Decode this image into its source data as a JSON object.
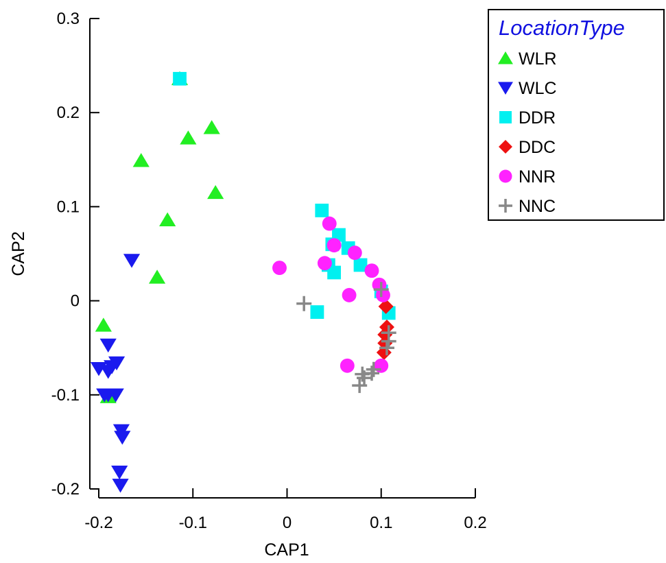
{
  "chart_data": {
    "type": "scatter",
    "xlabel": "CAP1",
    "ylabel": "CAP2",
    "xlim": [
      -0.2,
      0.2
    ],
    "ylim": [
      -0.2,
      0.3
    ],
    "x_ticks": [
      "-0.2",
      "-0.1",
      "0",
      "0.1",
      "0.2"
    ],
    "y_ticks": [
      "-0.2",
      "-0.1",
      "0",
      "0.1",
      "0.2",
      "0.3"
    ],
    "grid": false,
    "legend_title": "LocationType",
    "legend_title_color": "#1010e0",
    "legend_placement": "top-right",
    "series": [
      {
        "name": "WLR",
        "marker": "triangle-up",
        "color": "#22ee22",
        "points": [
          [
            -0.114,
            0.236
          ],
          [
            -0.08,
            0.184
          ],
          [
            -0.105,
            0.173
          ],
          [
            -0.155,
            0.149
          ],
          [
            -0.076,
            0.115
          ],
          [
            -0.127,
            0.086
          ],
          [
            -0.138,
            0.025
          ],
          [
            -0.195,
            -0.026
          ],
          [
            -0.19,
            -0.102
          ]
        ]
      },
      {
        "name": "WLC",
        "marker": "triangle-down",
        "color": "#1a1aee",
        "points": [
          [
            -0.165,
            0.043
          ],
          [
            -0.19,
            -0.047
          ],
          [
            -0.181,
            -0.066
          ],
          [
            -0.186,
            -0.07
          ],
          [
            -0.2,
            -0.072
          ],
          [
            -0.19,
            -0.075
          ],
          [
            -0.19,
            -0.1
          ],
          [
            -0.182,
            -0.1
          ],
          [
            -0.194,
            -0.1
          ],
          [
            -0.176,
            -0.138
          ],
          [
            -0.175,
            -0.145
          ],
          [
            -0.178,
            -0.182
          ],
          [
            -0.177,
            -0.196
          ]
        ]
      },
      {
        "name": "DDR",
        "marker": "square",
        "color": "#00f0f0",
        "points": [
          [
            -0.114,
            0.236
          ],
          [
            0.037,
            0.096
          ],
          [
            0.055,
            0.07
          ],
          [
            0.048,
            0.06
          ],
          [
            0.065,
            0.056
          ],
          [
            0.078,
            0.038
          ],
          [
            0.044,
            0.038
          ],
          [
            0.05,
            0.03
          ],
          [
            0.032,
            -0.012
          ],
          [
            0.1,
            0.01
          ],
          [
            0.108,
            -0.013
          ]
        ]
      },
      {
        "name": "DDC",
        "marker": "diamond",
        "color": "#ee1111",
        "points": [
          [
            0.105,
            -0.006
          ],
          [
            0.106,
            -0.028
          ],
          [
            0.104,
            -0.036
          ],
          [
            0.104,
            -0.045
          ],
          [
            0.103,
            -0.055
          ]
        ]
      },
      {
        "name": "NNR",
        "marker": "circle",
        "color": "#ff22ff",
        "points": [
          [
            -0.008,
            0.035
          ],
          [
            0.045,
            0.082
          ],
          [
            0.05,
            0.059
          ],
          [
            0.072,
            0.051
          ],
          [
            0.04,
            0.04
          ],
          [
            0.09,
            0.032
          ],
          [
            0.098,
            0.017
          ],
          [
            0.066,
            0.006
          ],
          [
            0.102,
            0.006
          ],
          [
            0.064,
            -0.069
          ],
          [
            0.1,
            -0.069
          ]
        ]
      },
      {
        "name": "NNC",
        "marker": "plus",
        "color": "#888888",
        "points": [
          [
            0.018,
            -0.003
          ],
          [
            0.1,
            0.012
          ],
          [
            0.108,
            -0.034
          ],
          [
            0.108,
            -0.043
          ],
          [
            0.106,
            -0.05
          ],
          [
            0.092,
            -0.073
          ],
          [
            0.09,
            -0.077
          ],
          [
            0.082,
            -0.082
          ],
          [
            0.08,
            -0.078
          ],
          [
            0.077,
            -0.09
          ]
        ]
      }
    ]
  }
}
